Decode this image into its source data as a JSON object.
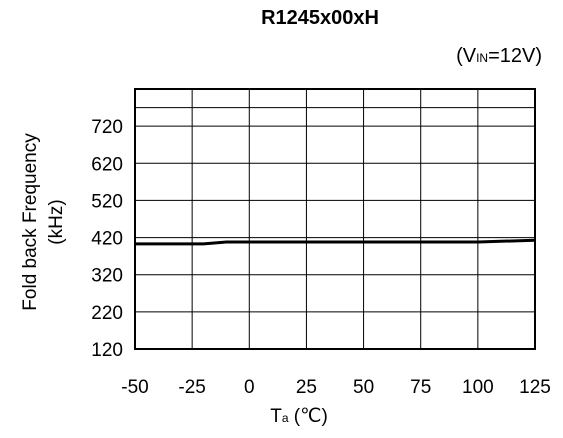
{
  "chart_data": {
    "type": "line",
    "title": "R1245x00xH",
    "condition": {
      "prefix": "(V",
      "subscript": "IN",
      "suffix": "=12V)"
    },
    "ylabel": {
      "line1": "Fold back Frequency",
      "line2": "(kHz)"
    },
    "xlabel": {
      "main": "T",
      "subscript": "a",
      "unit": " (℃)"
    },
    "xlim": [
      -50,
      125
    ],
    "ylim": [
      120,
      820
    ],
    "x_ticks": [
      -50,
      -25,
      0,
      25,
      50,
      75,
      100,
      125
    ],
    "y_ticks": [
      120,
      220,
      320,
      420,
      520,
      620,
      720
    ],
    "grid": true,
    "series": [
      {
        "x": [
          -50,
          -40,
          -30,
          -20,
          -10,
          0,
          25,
          50,
          75,
          100,
          110,
          125
        ],
        "y": [
          403,
          403,
          403,
          403,
          408,
          408,
          408,
          408,
          408,
          408,
          410,
          413
        ]
      }
    ]
  }
}
